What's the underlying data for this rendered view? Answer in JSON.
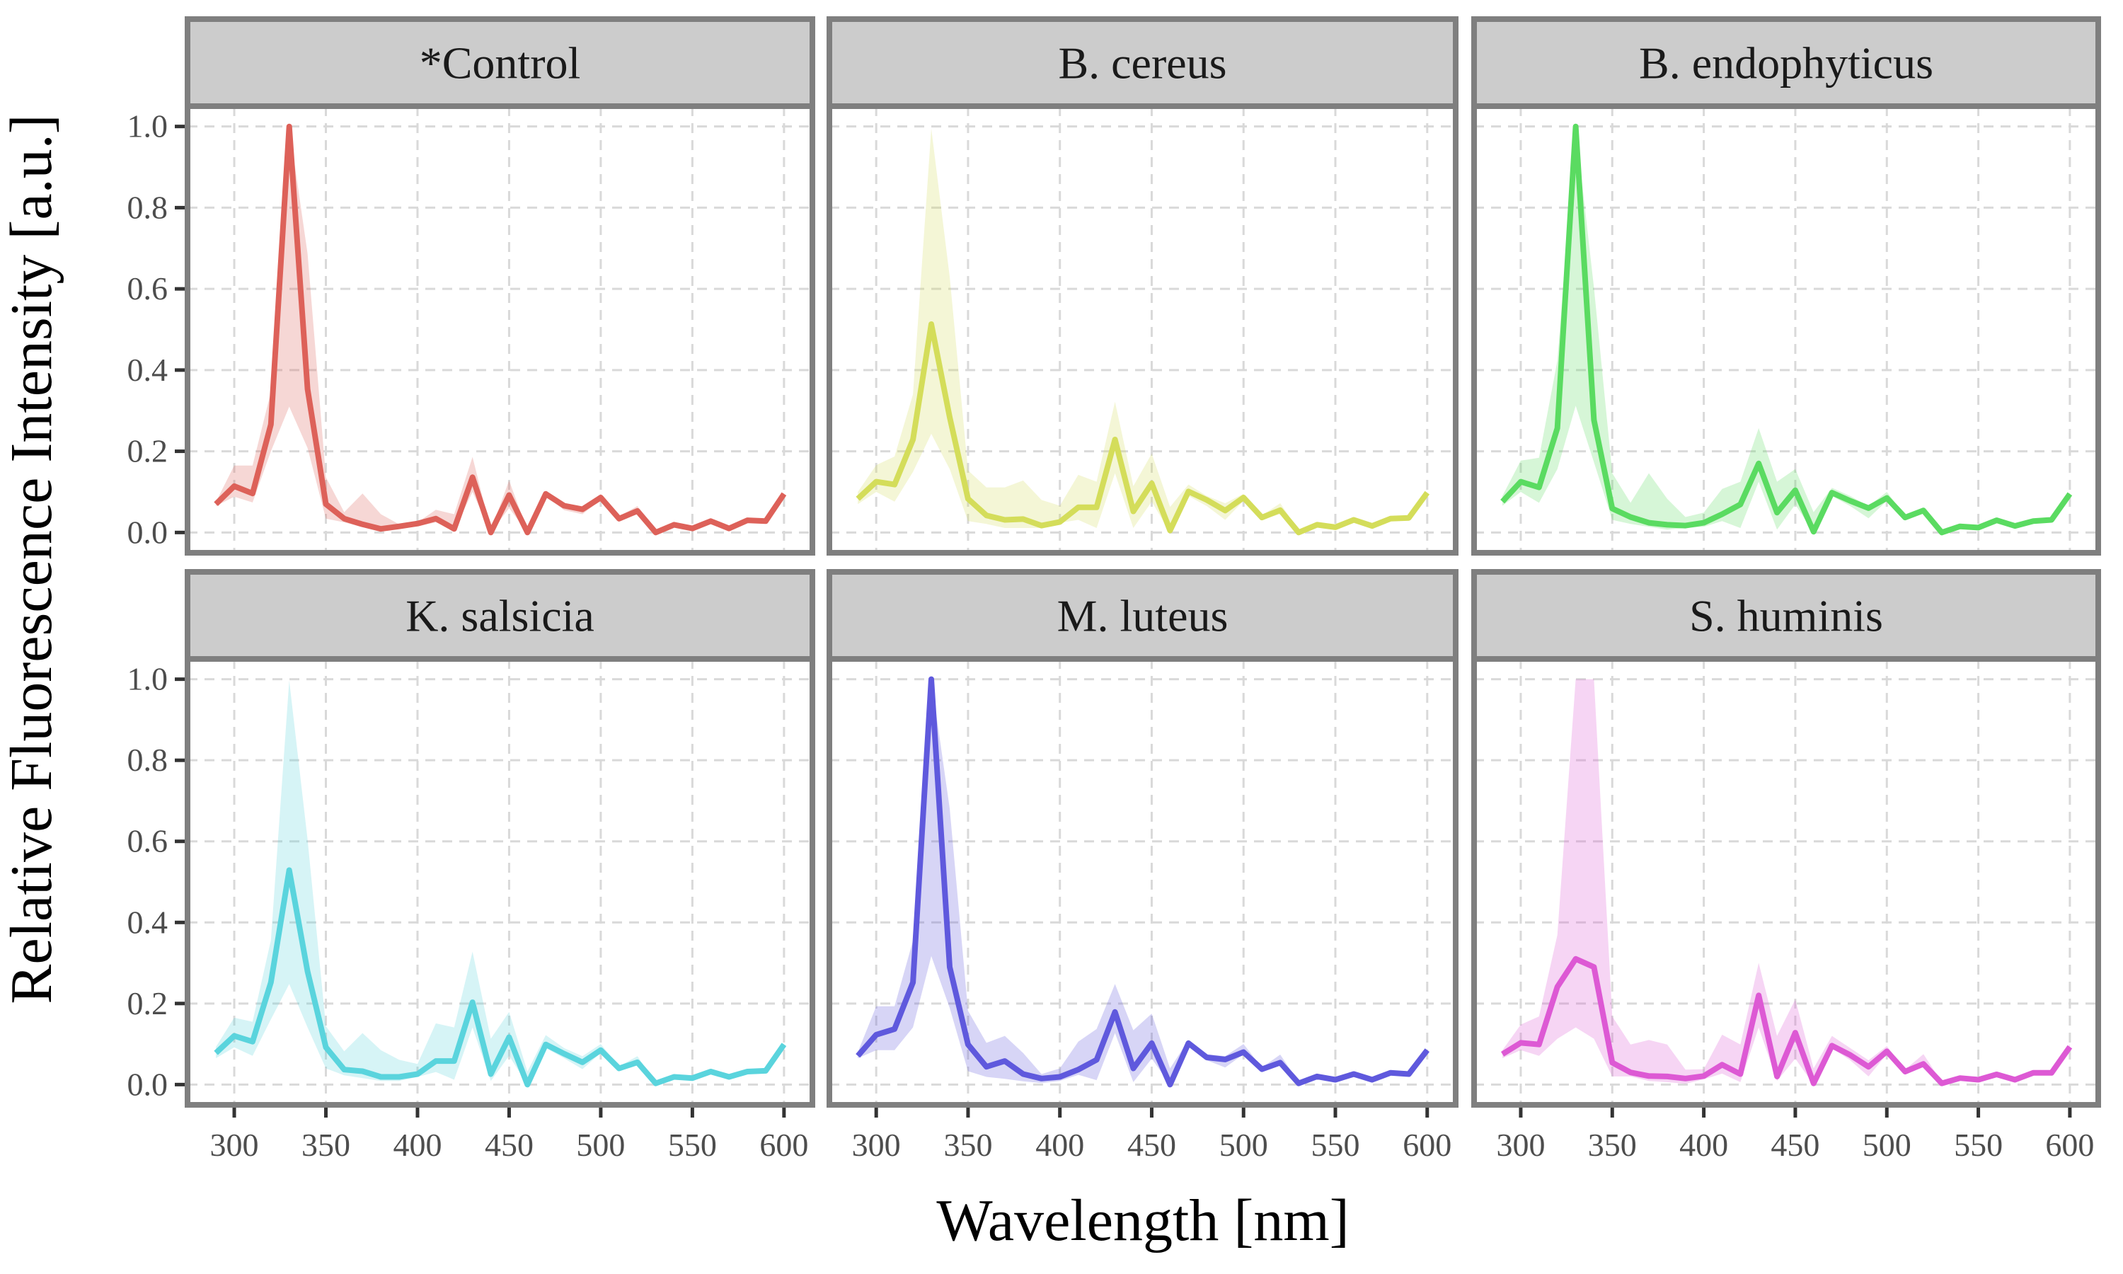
{
  "chart_data": {
    "type": "line",
    "layout": "facet-grid 2x3",
    "xlabel": "Wavelength [nm]",
    "ylabel": "Relative Fluorescence Intensity [a.u.]",
    "xlim": [
      274.5,
      615.5
    ],
    "ylim": [
      -0.05,
      1.05
    ],
    "xticks": [
      300,
      350,
      400,
      450,
      500,
      550,
      600
    ],
    "yticks": [
      0.0,
      0.2,
      0.4,
      0.6,
      0.8,
      1.0
    ],
    "ytick_labels": [
      "0.0",
      "0.2",
      "0.4",
      "0.6",
      "0.8",
      "1.0"
    ],
    "grid": true,
    "legend": "none",
    "x": [
      290,
      300,
      310,
      320,
      330,
      340,
      350,
      360,
      370,
      380,
      390,
      400,
      410,
      420,
      430,
      440,
      450,
      460,
      470,
      480,
      490,
      500,
      510,
      520,
      530,
      540,
      550,
      560,
      570,
      580,
      590,
      600
    ],
    "panels": [
      {
        "title": "*Control",
        "color": "#dd6159",
        "mean": [
          0.07,
          0.114,
          0.096,
          0.266,
          1.0,
          0.353,
          0.07,
          0.034,
          0.02,
          0.009,
          0.015,
          0.022,
          0.034,
          0.009,
          0.136,
          0.0,
          0.092,
          0.0,
          0.095,
          0.066,
          0.057,
          0.086,
          0.034,
          0.053,
          0.0,
          0.019,
          0.01,
          0.028,
          0.01,
          0.03,
          0.028,
          0.095
        ],
        "upper": [
          0.075,
          0.165,
          0.165,
          0.346,
          1.0,
          0.687,
          0.136,
          0.05,
          0.096,
          0.045,
          0.02,
          0.025,
          0.056,
          0.045,
          0.186,
          0.005,
          0.128,
          0.005,
          0.1,
          0.07,
          0.062,
          0.095,
          0.04,
          0.065,
          0.005,
          0.022,
          0.013,
          0.03,
          0.013,
          0.032,
          0.03,
          0.098
        ],
        "lower": [
          0.065,
          0.088,
          0.074,
          0.2,
          0.31,
          0.208,
          0.034,
          0.025,
          0.013,
          0.005,
          0.01,
          0.015,
          0.025,
          0.005,
          0.1,
          0.0,
          0.06,
          0.0,
          0.09,
          0.055,
          0.045,
          0.08,
          0.03,
          0.045,
          0.0,
          0.015,
          0.008,
          0.025,
          0.008,
          0.028,
          0.025,
          0.092
        ]
      },
      {
        "title": "B. cereus",
        "color": "#d4dd5a",
        "mean": [
          0.083,
          0.125,
          0.118,
          0.229,
          0.513,
          0.284,
          0.083,
          0.042,
          0.031,
          0.033,
          0.017,
          0.026,
          0.062,
          0.062,
          0.229,
          0.052,
          0.121,
          0.005,
          0.101,
          0.08,
          0.054,
          0.086,
          0.037,
          0.055,
          0.0,
          0.019,
          0.013,
          0.031,
          0.016,
          0.034,
          0.036,
          0.098
        ],
        "upper": [
          0.1,
          0.166,
          0.187,
          0.34,
          0.995,
          0.63,
          0.153,
          0.111,
          0.111,
          0.128,
          0.08,
          0.066,
          0.142,
          0.125,
          0.322,
          0.114,
          0.194,
          0.063,
          0.118,
          0.09,
          0.072,
          0.095,
          0.042,
          0.072,
          0.005,
          0.022,
          0.016,
          0.034,
          0.019,
          0.037,
          0.039,
          0.1
        ],
        "lower": [
          0.07,
          0.1,
          0.076,
          0.149,
          0.243,
          0.156,
          0.028,
          0.021,
          0.011,
          0.011,
          0.011,
          0.024,
          0.031,
          0.011,
          0.146,
          0.011,
          0.076,
          0.0,
          0.09,
          0.065,
          0.031,
          0.078,
          0.032,
          0.045,
          0.0,
          0.015,
          0.01,
          0.027,
          0.013,
          0.03,
          0.032,
          0.095
        ]
      },
      {
        "title": "B. endophyticus",
        "color": "#5adb61",
        "mean": [
          0.076,
          0.125,
          0.111,
          0.257,
          1.0,
          0.277,
          0.059,
          0.038,
          0.024,
          0.019,
          0.017,
          0.024,
          0.045,
          0.069,
          0.17,
          0.049,
          0.104,
          0.002,
          0.098,
          0.078,
          0.06,
          0.085,
          0.037,
          0.054,
          0.0,
          0.015,
          0.012,
          0.03,
          0.016,
          0.028,
          0.031,
          0.095
        ],
        "upper": [
          0.09,
          0.177,
          0.184,
          0.423,
          1.0,
          0.603,
          0.146,
          0.073,
          0.146,
          0.083,
          0.038,
          0.049,
          0.107,
          0.125,
          0.257,
          0.125,
          0.156,
          0.05,
          0.11,
          0.09,
          0.065,
          0.1,
          0.042,
          0.062,
          0.004,
          0.018,
          0.015,
          0.033,
          0.019,
          0.031,
          0.034,
          0.098
        ],
        "lower": [
          0.066,
          0.1,
          0.073,
          0.156,
          0.312,
          0.173,
          0.031,
          0.021,
          0.014,
          0.007,
          0.011,
          0.014,
          0.028,
          0.011,
          0.125,
          0.007,
          0.069,
          0.0,
          0.09,
          0.065,
          0.035,
          0.078,
          0.032,
          0.048,
          0.0,
          0.012,
          0.009,
          0.027,
          0.013,
          0.025,
          0.028,
          0.092
        ]
      },
      {
        "title": "K. salsicia",
        "color": "#5ad4dd",
        "mean": [
          0.078,
          0.12,
          0.106,
          0.252,
          0.529,
          0.279,
          0.092,
          0.037,
          0.033,
          0.019,
          0.019,
          0.026,
          0.058,
          0.058,
          0.203,
          0.026,
          0.117,
          0.0,
          0.099,
          0.076,
          0.055,
          0.085,
          0.04,
          0.055,
          0.003,
          0.019,
          0.016,
          0.032,
          0.019,
          0.032,
          0.034,
          0.099
        ],
        "upper": [
          0.093,
          0.165,
          0.155,
          0.356,
          0.997,
          0.605,
          0.144,
          0.082,
          0.127,
          0.085,
          0.061,
          0.051,
          0.151,
          0.141,
          0.328,
          0.113,
          0.179,
          0.032,
          0.122,
          0.09,
          0.07,
          0.1,
          0.045,
          0.07,
          0.006,
          0.022,
          0.019,
          0.035,
          0.022,
          0.035,
          0.037,
          0.102
        ],
        "lower": [
          0.065,
          0.092,
          0.071,
          0.161,
          0.248,
          0.141,
          0.04,
          0.023,
          0.016,
          0.009,
          0.009,
          0.019,
          0.031,
          0.012,
          0.141,
          0.009,
          0.071,
          0.0,
          0.09,
          0.065,
          0.038,
          0.078,
          0.035,
          0.048,
          0.0,
          0.016,
          0.013,
          0.029,
          0.016,
          0.029,
          0.031,
          0.096
        ]
      },
      {
        "title": "M. luteus",
        "color": "#5f59dd",
        "mean": [
          0.071,
          0.123,
          0.137,
          0.252,
          1.0,
          0.29,
          0.099,
          0.044,
          0.058,
          0.026,
          0.015,
          0.019,
          0.037,
          0.061,
          0.179,
          0.04,
          0.102,
          0.0,
          0.102,
          0.067,
          0.062,
          0.08,
          0.038,
          0.054,
          0.003,
          0.02,
          0.012,
          0.026,
          0.012,
          0.029,
          0.026,
          0.085
        ],
        "upper": [
          0.08,
          0.193,
          0.193,
          0.355,
          1.0,
          0.681,
          0.182,
          0.103,
          0.12,
          0.078,
          0.026,
          0.04,
          0.106,
          0.137,
          0.248,
          0.134,
          0.175,
          0.04,
          0.11,
          0.075,
          0.07,
          0.1,
          0.042,
          0.074,
          0.006,
          0.023,
          0.015,
          0.029,
          0.015,
          0.032,
          0.029,
          0.088
        ],
        "lower": [
          0.065,
          0.085,
          0.085,
          0.141,
          0.317,
          0.189,
          0.033,
          0.019,
          0.014,
          0.008,
          0.004,
          0.009,
          0.024,
          0.011,
          0.127,
          0.006,
          0.064,
          0.0,
          0.095,
          0.06,
          0.042,
          0.075,
          0.034,
          0.048,
          0.0,
          0.017,
          0.009,
          0.023,
          0.009,
          0.026,
          0.023,
          0.082
        ]
      },
      {
        "title": "S. huminis",
        "color": "#dd59d4",
        "mean": [
          0.075,
          0.103,
          0.099,
          0.241,
          0.31,
          0.29,
          0.054,
          0.03,
          0.021,
          0.02,
          0.015,
          0.021,
          0.049,
          0.026,
          0.22,
          0.02,
          0.128,
          0.003,
          0.096,
          0.073,
          0.044,
          0.082,
          0.032,
          0.051,
          0.003,
          0.016,
          0.012,
          0.025,
          0.012,
          0.029,
          0.029,
          0.093
        ],
        "upper": [
          0.085,
          0.148,
          0.168,
          0.369,
          1.0,
          1.0,
          0.168,
          0.099,
          0.11,
          0.099,
          0.037,
          0.038,
          0.123,
          0.099,
          0.3,
          0.12,
          0.21,
          0.04,
          0.12,
          0.09,
          0.06,
          0.095,
          0.037,
          0.075,
          0.006,
          0.019,
          0.015,
          0.028,
          0.015,
          0.032,
          0.032,
          0.1
        ],
        "lower": [
          0.065,
          0.085,
          0.071,
          0.113,
          0.141,
          0.113,
          0.02,
          0.02,
          0.009,
          0.006,
          0.002,
          0.013,
          0.027,
          0.006,
          0.141,
          0.009,
          0.064,
          0.0,
          0.09,
          0.06,
          0.02,
          0.075,
          0.028,
          0.045,
          0.0,
          0.013,
          0.009,
          0.022,
          0.009,
          0.026,
          0.026,
          0.09
        ]
      }
    ]
  }
}
